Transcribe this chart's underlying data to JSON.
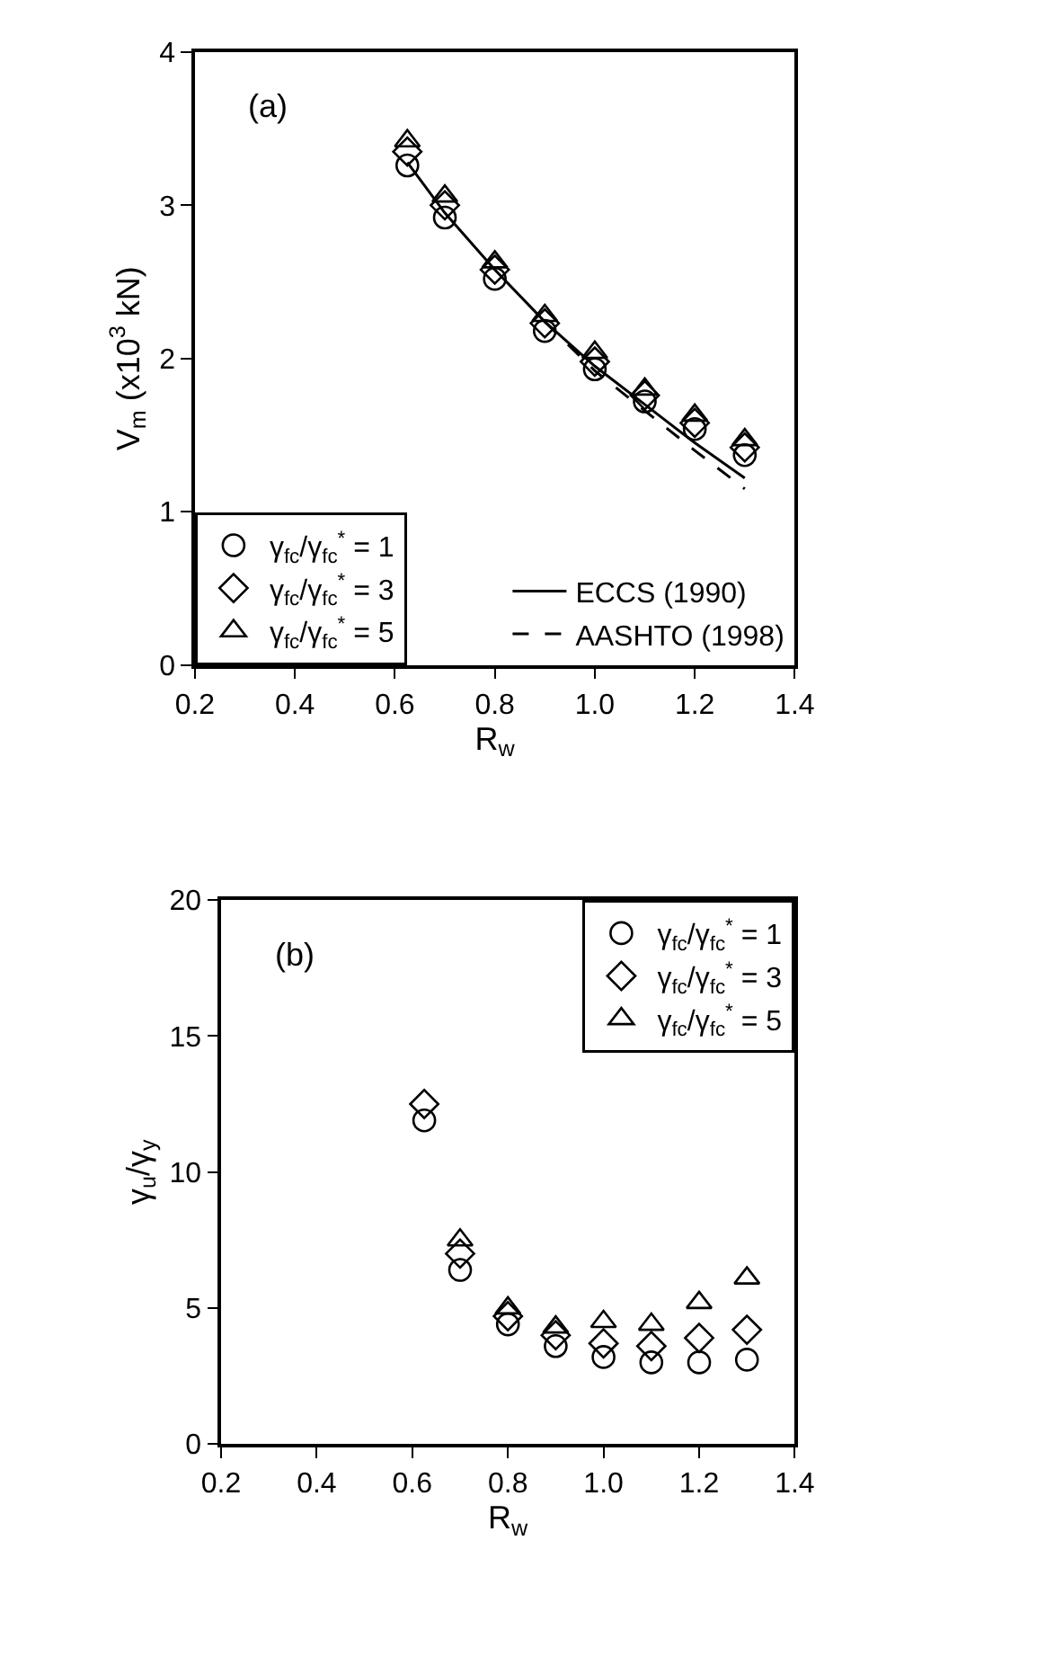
{
  "chart_data": [
    {
      "type": "scatter",
      "xlabel": "R$_{w}$",
      "ylabel": "V$_{m}$ (x10$^{3}$ kN)",
      "annotations": [
        "(a)"
      ],
      "x": [
        0.625,
        0.7,
        0.8,
        0.9,
        1.0,
        1.1,
        1.2,
        1.3
      ],
      "xlim": [
        0.2,
        1.4
      ],
      "xticks": [
        0.2,
        0.4,
        0.6,
        0.8,
        {
          "value": 1.0,
          "label": "1.0"
        },
        1.2,
        1.4
      ],
      "ylim": [
        0,
        4
      ],
      "yticks": [
        0,
        1,
        2,
        3,
        4
      ],
      "legend": "bottom left",
      "series": [
        {
          "name": "γ$_{fc}$/γ$_{fc}$$^{*}$ = 1",
          "color": "#000000",
          "marker": "circle",
          "values": [
            3.26,
            2.92,
            2.52,
            2.18,
            1.93,
            1.72,
            1.54,
            1.37
          ]
        },
        {
          "name": "γ$_{fc}$/γ$_{fc}$$^{*}$ = 3",
          "color": "#000000",
          "marker": "diamond",
          "values": [
            3.35,
            3.0,
            2.58,
            2.23,
            1.98,
            1.76,
            1.58,
            1.42
          ]
        },
        {
          "name": "γ$_{fc}$/γ$_{fc}$$^{*}$ = 5",
          "color": "#000000",
          "marker": "triangle",
          "values": [
            3.42,
            3.06,
            2.63,
            2.28,
            2.04,
            1.8,
            1.63,
            1.47
          ]
        },
        {
          "name": "ECCS (1990)",
          "type": "line",
          "color": "#000000",
          "line_style": "solid",
          "marker": "none",
          "x": [
            0.625,
            0.7,
            0.8,
            0.9,
            1.0,
            1.1,
            1.2,
            1.3
          ],
          "values": [
            3.28,
            2.95,
            2.58,
            2.24,
            1.95,
            1.7,
            1.45,
            1.22
          ]
        },
        {
          "name": "AASHTO (1998)",
          "type": "line",
          "color": "#000000",
          "line_style": "dashed",
          "marker": "none",
          "x": [
            0.9,
            1.0,
            1.1,
            1.2,
            1.3
          ],
          "values": [
            2.24,
            1.92,
            1.66,
            1.4,
            1.15
          ]
        }
      ]
    },
    {
      "type": "scatter",
      "xlabel": "R$_{w}$",
      "ylabel": "γ$_{u}$/γ$_{y}$",
      "annotations": [
        "(b)"
      ],
      "x": [
        0.625,
        0.7,
        0.8,
        0.9,
        1.0,
        1.1,
        1.2,
        1.3
      ],
      "xlim": [
        0.2,
        1.4
      ],
      "xticks": [
        0.2,
        0.4,
        0.6,
        0.8,
        {
          "value": 1.0,
          "label": "1.0"
        },
        1.2,
        1.4
      ],
      "ylim": [
        0,
        20
      ],
      "yticks": [
        0,
        5,
        10,
        15,
        20
      ],
      "legend": "top right",
      "series": [
        {
          "name": "γ$_{fc}$/γ$_{fc}$$^{*}$ = 1",
          "color": "#000000",
          "marker": "circle",
          "values": [
            11.9,
            6.4,
            4.4,
            3.6,
            3.2,
            3.0,
            3.0,
            3.1
          ]
        },
        {
          "name": "γ$_{fc}$/γ$_{fc}$$^{*}$ = 3",
          "color": "#000000",
          "marker": "diamond",
          "values": [
            12.5,
            7.0,
            4.7,
            4.0,
            3.7,
            3.6,
            3.9,
            4.2
          ]
        },
        {
          "name": "γ$_{fc}$/γ$_{fc}$$^{*}$ = 5",
          "color": "#000000",
          "marker": "triangle",
          "values": [
            null,
            7.5,
            5.0,
            4.3,
            4.5,
            4.4,
            5.2,
            6.1
          ]
        }
      ]
    }
  ]
}
